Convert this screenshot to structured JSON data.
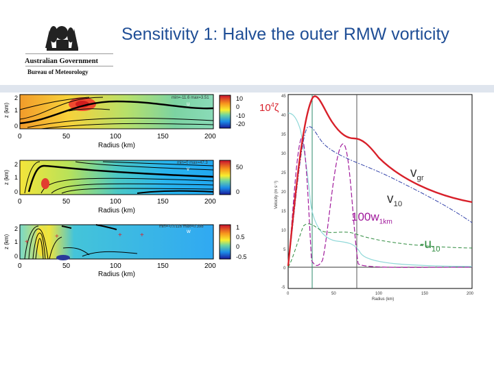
{
  "slide": {
    "title": "Sensitivity 1: Halve the outer RMW vorticity"
  },
  "logo": {
    "line1": "Australian Government",
    "line2": "Bureau of Meteorology",
    "icon": "coat-of-arms-icon"
  },
  "left_panels": [
    {
      "minmax": "min=-11.6 max=3.51",
      "var": "u",
      "colorbar_ticks": [
        "10",
        "0",
        "-10",
        "-20"
      ],
      "ylabel": "z (km)",
      "y_ticks": [
        "2",
        "1",
        "0"
      ],
      "xlabel": "Radius (km)",
      "x_ticks": [
        "0",
        "50",
        "100",
        "150",
        "200"
      ]
    },
    {
      "minmax": "min=0 max=47.3",
      "var": "v",
      "colorbar_ticks": [
        "50",
        "0"
      ],
      "ylabel": "z (km)",
      "y_ticks": [
        "2",
        "1",
        "0"
      ],
      "xlabel": "Radius (km)",
      "x_ticks": [
        "0",
        "50",
        "100",
        "150",
        "200"
      ]
    },
    {
      "minmax": "min=-0.0116 max=0.398",
      "var": "w",
      "colorbar_ticks": [
        "1",
        "0.5",
        "0",
        "-0.5"
      ],
      "ylabel": "z (km)",
      "y_ticks": [
        "2",
        "1",
        "0"
      ],
      "xlabel": "Radius (km)",
      "x_ticks": [
        "0",
        "50",
        "100",
        "150",
        "200"
      ]
    }
  ],
  "profile_plot": {
    "ylabel": "Velocity (m s⁻¹)",
    "xlabel": "Radius (km)",
    "y_ticks": [
      "45",
      "40",
      "35",
      "30",
      "25",
      "20",
      "15",
      "10",
      "5",
      "0",
      "-5"
    ],
    "x_ticks": [
      "0",
      "50",
      "100",
      "150",
      "200"
    ],
    "curve_labels": {
      "zeta": {
        "main": "10",
        "sup": "4",
        "tail": "ζ"
      },
      "vgr": {
        "main": "v",
        "sub": "gr"
      },
      "v10": {
        "main": "v",
        "sub": "10"
      },
      "w1km": {
        "main": "100w",
        "sub": "1km"
      },
      "u10": {
        "main": "-u",
        "sub": "10"
      }
    }
  },
  "colors": {
    "title": "#1f4e96",
    "vgr": "#d8202a",
    "v10": "#2f3fa8",
    "w1km": "#a0199b",
    "u10": "#2e8b3e",
    "zeta": "#8fd8d8"
  }
}
